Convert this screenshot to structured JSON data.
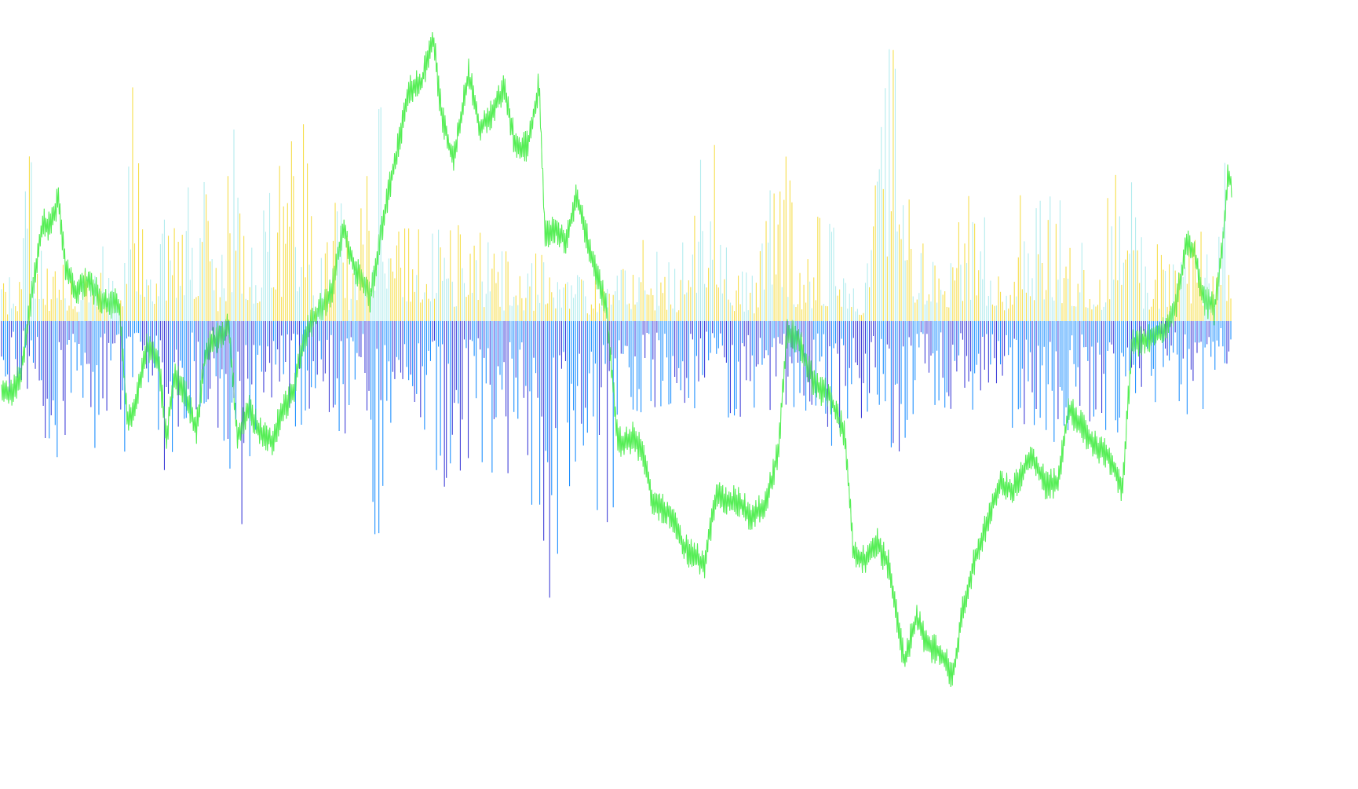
{
  "chart_data": {
    "type": "bar",
    "description_free": true,
    "title": "",
    "xlabel": "",
    "ylabel": "",
    "grid": false,
    "legend": "none",
    "baseline": 0,
    "ylim": [
      -1.0,
      1.0
    ],
    "n_bars": 620,
    "colors": {
      "positive_primary": "#f6de4c",
      "positive_secondary": "#b3ecee",
      "negative_primary": "#1e90ff",
      "negative_secondary": "#4040d8",
      "trace": "#55ee55",
      "background": "#ffffff"
    },
    "positive_envelope": [
      [
        0,
        0.12
      ],
      [
        20,
        0.2
      ],
      [
        36,
        0.58
      ],
      [
        60,
        0.18
      ],
      [
        75,
        0.2
      ],
      [
        100,
        0.16
      ],
      [
        115,
        0.42
      ],
      [
        125,
        0.28
      ],
      [
        150,
        0.14
      ],
      [
        168,
        0.84
      ],
      [
        185,
        0.18
      ],
      [
        205,
        0.34
      ],
      [
        246,
        0.49
      ],
      [
        255,
        0.54
      ],
      [
        275,
        0.18
      ],
      [
        298,
        0.72
      ],
      [
        310,
        0.25
      ],
      [
        340,
        0.45
      ],
      [
        376,
        0.66
      ],
      [
        386,
        0.68
      ],
      [
        400,
        0.18
      ],
      [
        428,
        0.48
      ],
      [
        445,
        0.22
      ],
      [
        463,
        0.55
      ],
      [
        483,
        0.75
      ],
      [
        500,
        0.3
      ],
      [
        515,
        0.32
      ],
      [
        553,
        0.31
      ],
      [
        570,
        0.33
      ],
      [
        602,
        0.33
      ],
      [
        630,
        0.24
      ],
      [
        670,
        0.24
      ],
      [
        700,
        0.22
      ],
      [
        730,
        0.26
      ],
      [
        745,
        0.14
      ],
      [
        780,
        0.14
      ],
      [
        818,
        0.28
      ],
      [
        860,
        0.18
      ],
      [
        906,
        0.8
      ],
      [
        930,
        0.18
      ],
      [
        960,
        0.16
      ],
      [
        996,
        0.69
      ],
      [
        1020,
        0.16
      ],
      [
        1040,
        0.36
      ],
      [
        1071,
        0.31
      ],
      [
        1100,
        0.1
      ],
      [
        1134,
        1.0
      ],
      [
        1160,
        0.34
      ],
      [
        1200,
        0.14
      ],
      [
        1213,
        0.4
      ],
      [
        1234,
        0.44
      ],
      [
        1280,
        0.24
      ],
      [
        1297,
        0.43
      ],
      [
        1333,
        0.5
      ],
      [
        1360,
        0.36
      ],
      [
        1400,
        0.2
      ],
      [
        1431,
        0.89
      ],
      [
        1460,
        0.14
      ],
      [
        1475,
        0.28
      ],
      [
        1500,
        0.18
      ],
      [
        1530,
        0.36
      ],
      [
        1550,
        0.26
      ],
      [
        1558,
        0.59
      ],
      [
        1567,
        0.3
      ]
    ],
    "negative_envelope": [
      [
        0,
        -0.4
      ],
      [
        20,
        -0.22
      ],
      [
        40,
        -0.24
      ],
      [
        75,
        -0.62
      ],
      [
        95,
        -0.3
      ],
      [
        120,
        -0.45
      ],
      [
        140,
        -0.28
      ],
      [
        158,
        -0.46
      ],
      [
        180,
        -0.2
      ],
      [
        210,
        -0.54
      ],
      [
        240,
        -0.32
      ],
      [
        270,
        -0.26
      ],
      [
        300,
        -0.8
      ],
      [
        330,
        -0.32
      ],
      [
        350,
        -0.24
      ],
      [
        378,
        -0.38
      ],
      [
        400,
        -0.26
      ],
      [
        430,
        -0.4
      ],
      [
        460,
        -0.35
      ],
      [
        482,
        -0.88
      ],
      [
        500,
        -0.26
      ],
      [
        530,
        -0.3
      ],
      [
        560,
        -0.62
      ],
      [
        600,
        -0.45
      ],
      [
        646,
        -0.58
      ],
      [
        660,
        -0.3
      ],
      [
        680,
        -0.83
      ],
      [
        691,
        -1.27
      ],
      [
        730,
        -0.52
      ],
      [
        775,
        -0.72
      ],
      [
        800,
        -0.3
      ],
      [
        822,
        -0.32
      ],
      [
        855,
        -0.3
      ],
      [
        900,
        -0.3
      ],
      [
        950,
        -0.38
      ],
      [
        990,
        -0.28
      ],
      [
        1040,
        -0.32
      ],
      [
        1080,
        -0.56
      ],
      [
        1100,
        -0.3
      ],
      [
        1134,
        -0.58
      ],
      [
        1160,
        -0.32
      ],
      [
        1200,
        -0.32
      ],
      [
        1250,
        -0.3
      ],
      [
        1300,
        -0.46
      ],
      [
        1340,
        -0.44
      ],
      [
        1380,
        -0.32
      ],
      [
        1420,
        -0.52
      ],
      [
        1450,
        -0.2
      ],
      [
        1471,
        -0.38
      ],
      [
        1500,
        -0.26
      ],
      [
        1518,
        -0.5
      ],
      [
        1540,
        -0.18
      ],
      [
        1567,
        -0.18
      ]
    ],
    "trace_points": [
      [
        0,
        -0.24
      ],
      [
        10,
        -0.26
      ],
      [
        25,
        -0.18
      ],
      [
        40,
        0.12
      ],
      [
        52,
        0.34
      ],
      [
        62,
        0.32
      ],
      [
        72,
        0.42
      ],
      [
        82,
        0.18
      ],
      [
        95,
        0.1
      ],
      [
        110,
        0.14
      ],
      [
        130,
        0.06
      ],
      [
        150,
        0.06
      ],
      [
        160,
        -0.34
      ],
      [
        170,
        -0.3
      ],
      [
        185,
        -0.08
      ],
      [
        200,
        -0.14
      ],
      [
        210,
        -0.4
      ],
      [
        220,
        -0.18
      ],
      [
        235,
        -0.26
      ],
      [
        248,
        -0.38
      ],
      [
        260,
        -0.1
      ],
      [
        275,
        -0.06
      ],
      [
        290,
        -0.02
      ],
      [
        300,
        -0.4
      ],
      [
        315,
        -0.3
      ],
      [
        330,
        -0.38
      ],
      [
        345,
        -0.42
      ],
      [
        355,
        -0.32
      ],
      [
        372,
        -0.24
      ],
      [
        385,
        -0.06
      ],
      [
        400,
        0.02
      ],
      [
        420,
        0.1
      ],
      [
        435,
        0.32
      ],
      [
        450,
        0.18
      ],
      [
        470,
        0.08
      ],
      [
        490,
        0.4
      ],
      [
        505,
        0.6
      ],
      [
        520,
        0.8
      ],
      [
        535,
        0.82
      ],
      [
        550,
        0.98
      ],
      [
        560,
        0.72
      ],
      [
        575,
        0.55
      ],
      [
        595,
        0.85
      ],
      [
        610,
        0.66
      ],
      [
        625,
        0.72
      ],
      [
        640,
        0.8
      ],
      [
        655,
        0.6
      ],
      [
        670,
        0.6
      ],
      [
        685,
        0.82
      ],
      [
        692,
        0.3
      ],
      [
        705,
        0.32
      ],
      [
        720,
        0.28
      ],
      [
        732,
        0.44
      ],
      [
        750,
        0.24
      ],
      [
        770,
        0.06
      ],
      [
        785,
        -0.42
      ],
      [
        805,
        -0.4
      ],
      [
        818,
        -0.46
      ],
      [
        830,
        -0.62
      ],
      [
        850,
        -0.66
      ],
      [
        870,
        -0.78
      ],
      [
        895,
        -0.84
      ],
      [
        910,
        -0.6
      ],
      [
        925,
        -0.62
      ],
      [
        940,
        -0.62
      ],
      [
        955,
        -0.68
      ],
      [
        975,
        -0.62
      ],
      [
        990,
        -0.44
      ],
      [
        1000,
        -0.04
      ],
      [
        1015,
        -0.06
      ],
      [
        1035,
        -0.22
      ],
      [
        1055,
        -0.26
      ],
      [
        1075,
        -0.4
      ],
      [
        1085,
        -0.8
      ],
      [
        1100,
        -0.82
      ],
      [
        1115,
        -0.76
      ],
      [
        1130,
        -0.84
      ],
      [
        1150,
        -1.18
      ],
      [
        1165,
        -1.02
      ],
      [
        1180,
        -1.12
      ],
      [
        1195,
        -1.14
      ],
      [
        1212,
        -1.22
      ],
      [
        1225,
        -0.98
      ],
      [
        1240,
        -0.82
      ],
      [
        1255,
        -0.7
      ],
      [
        1270,
        -0.56
      ],
      [
        1290,
        -0.58
      ],
      [
        1310,
        -0.46
      ],
      [
        1330,
        -0.56
      ],
      [
        1345,
        -0.56
      ],
      [
        1360,
        -0.3
      ],
      [
        1380,
        -0.38
      ],
      [
        1395,
        -0.44
      ],
      [
        1410,
        -0.46
      ],
      [
        1428,
        -0.58
      ],
      [
        1440,
        -0.08
      ],
      [
        1460,
        -0.06
      ],
      [
        1480,
        -0.04
      ],
      [
        1495,
        0.04
      ],
      [
        1510,
        0.28
      ],
      [
        1520,
        0.24
      ],
      [
        1530,
        0.08
      ],
      [
        1545,
        0.04
      ],
      [
        1555,
        0.26
      ],
      [
        1562,
        0.5
      ],
      [
        1567,
        0.48
      ]
    ]
  }
}
